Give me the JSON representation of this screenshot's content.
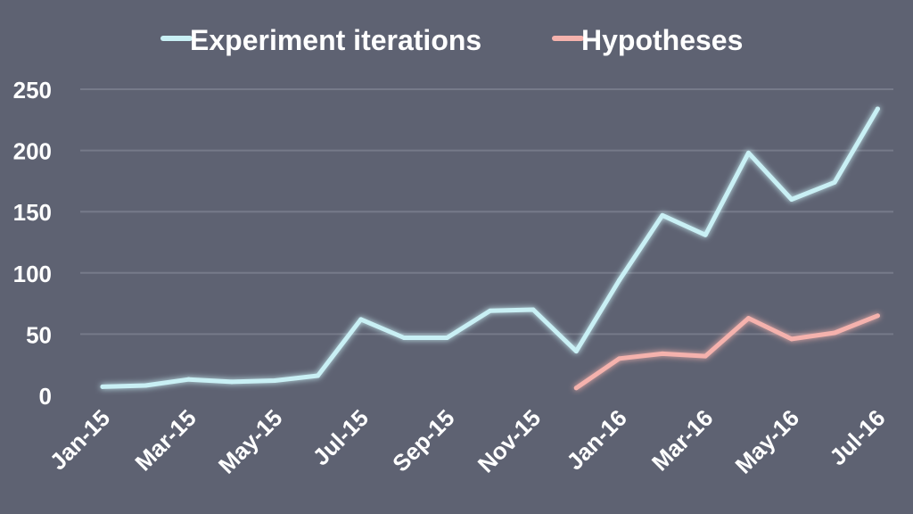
{
  "chart_data": {
    "type": "line",
    "title": "",
    "xlabel": "",
    "ylabel": "",
    "categories": [
      "Jan-15",
      "Feb-15",
      "Mar-15",
      "Apr-15",
      "May-15",
      "Jun-15",
      "Jul-15",
      "Aug-15",
      "Sep-15",
      "Oct-15",
      "Nov-15",
      "Dec-15",
      "Jan-16",
      "Feb-16",
      "Mar-16",
      "Apr-16",
      "May-16",
      "Jun-16",
      "Jul-16"
    ],
    "x_tick_labels": [
      "Jan-15",
      "Mar-15",
      "May-15",
      "Jul-15",
      "Sep-15",
      "Nov-15",
      "Jan-16",
      "Mar-16",
      "May-16",
      "Jul-16"
    ],
    "y_ticks": [
      0,
      50,
      100,
      150,
      200,
      250
    ],
    "ylim": [
      0,
      250
    ],
    "grid": true,
    "legend_position": "top",
    "series": [
      {
        "name": "Experiment iterations",
        "color": "#c9f0f5",
        "values": [
          7,
          8,
          13,
          11,
          12,
          16,
          62,
          47,
          47,
          69,
          70,
          36,
          94,
          147,
          131,
          198,
          160,
          174,
          234
        ]
      },
      {
        "name": "Hypotheses",
        "color": "#f5b2ad",
        "values": [
          null,
          null,
          null,
          null,
          null,
          null,
          null,
          null,
          null,
          null,
          null,
          6,
          30,
          34,
          32,
          63,
          46,
          51,
          65
        ]
      }
    ]
  }
}
